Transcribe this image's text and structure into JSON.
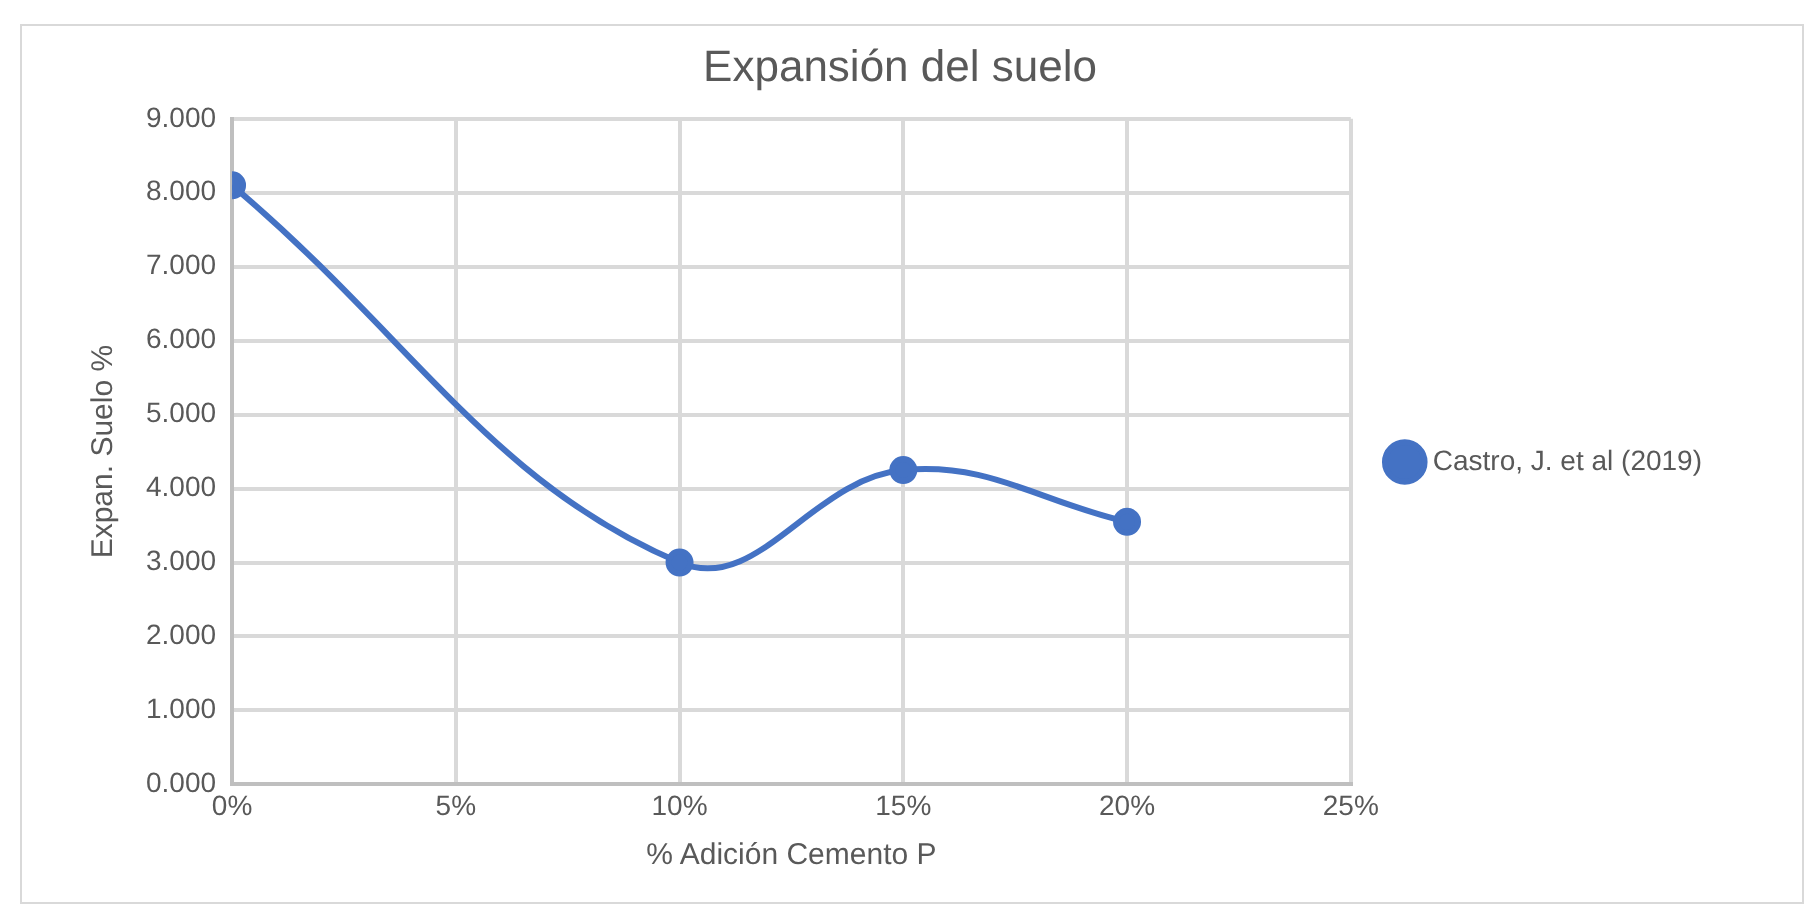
{
  "chart_data": {
    "type": "line",
    "title": "Expansión del suelo",
    "xlabel": "% Adición Cemento P",
    "ylabel": "Expan. Suelo %",
    "x": [
      0,
      10,
      15,
      20
    ],
    "series": [
      {
        "name": "Castro, J. et al (2019)",
        "color": "#4472c4",
        "values": [
          8.1,
          3.0,
          4.25,
          3.55
        ]
      }
    ],
    "xlim": [
      0,
      25
    ],
    "xticks": [
      {
        "value": 0,
        "label": "0%"
      },
      {
        "value": 5,
        "label": "5%"
      },
      {
        "value": 10,
        "label": "10%"
      },
      {
        "value": 15,
        "label": "15%"
      },
      {
        "value": 20,
        "label": "20%"
      },
      {
        "value": 25,
        "label": "25%"
      }
    ],
    "ylim": [
      0,
      9
    ],
    "yticks": [
      {
        "value": 0,
        "label": "0.000"
      },
      {
        "value": 1,
        "label": "1.000"
      },
      {
        "value": 2,
        "label": "2.000"
      },
      {
        "value": 3,
        "label": "3.000"
      },
      {
        "value": 4,
        "label": "4.000"
      },
      {
        "value": 5,
        "label": "5.000"
      },
      {
        "value": 6,
        "label": "6.000"
      },
      {
        "value": 7,
        "label": "7.000"
      },
      {
        "value": 8,
        "label": "8.000"
      },
      {
        "value": 9,
        "label": "9.000"
      }
    ],
    "grid": true,
    "legend": "right",
    "marker": "circle",
    "line_style": "solid"
  }
}
